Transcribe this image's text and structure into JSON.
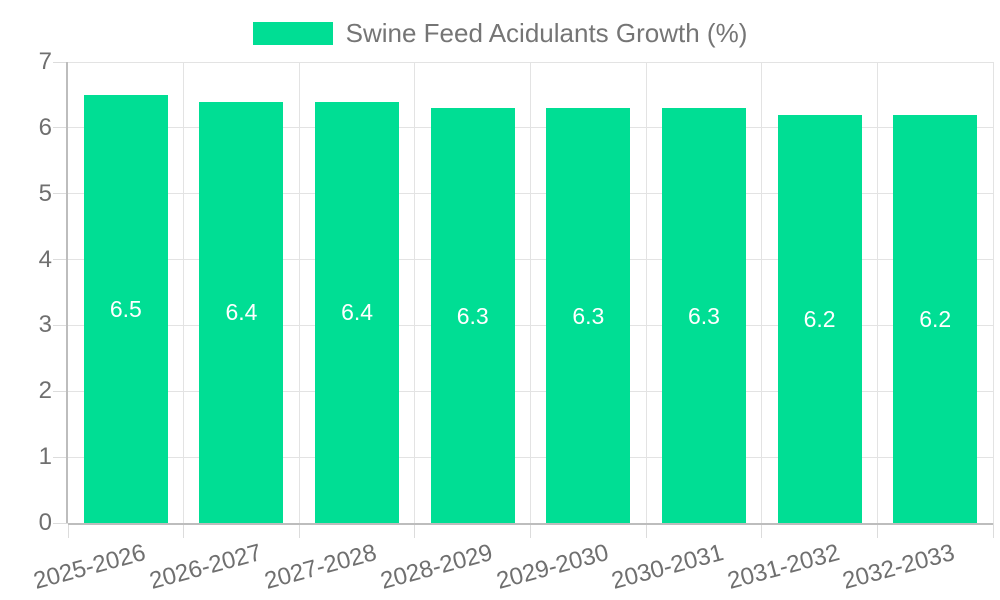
{
  "chart_data": {
    "type": "bar",
    "categories": [
      "2025-2026",
      "2026-2027",
      "2027-2028",
      "2028-2029",
      "2029-2030",
      "2030-2031",
      "2031-2032",
      "2032-2033"
    ],
    "series": [
      {
        "name": "Swine Feed Acidulants Growth (%)",
        "values": [
          6.5,
          6.4,
          6.4,
          6.3,
          6.3,
          6.3,
          6.2,
          6.2
        ]
      }
    ],
    "data_labels": [
      "6.5",
      "6.4",
      "6.4",
      "6.3",
      "6.3",
      "6.3",
      "6.2",
      "6.2"
    ],
    "title": "",
    "xlabel": "",
    "ylabel": "",
    "ylim": [
      0,
      7
    ],
    "yticks": [
      "0",
      "1",
      "2",
      "3",
      "4",
      "5",
      "6",
      "7"
    ],
    "grid": true,
    "legend_position": "top",
    "x_tick_rotation_deg": -15
  },
  "legend": {
    "items": [
      {
        "label": "Swine Feed Acidulants Growth (%)",
        "color": "#00DE94"
      }
    ]
  },
  "colors": {
    "background": "#ffffff",
    "bar": "#00DE94",
    "legend_text": "#757575",
    "axis_text": "#6f6f6f",
    "gridline": "#e3e3e3",
    "tick": "#dcdcdc",
    "axis_line": "#bdbdbd",
    "data_label": "#ffffff"
  }
}
